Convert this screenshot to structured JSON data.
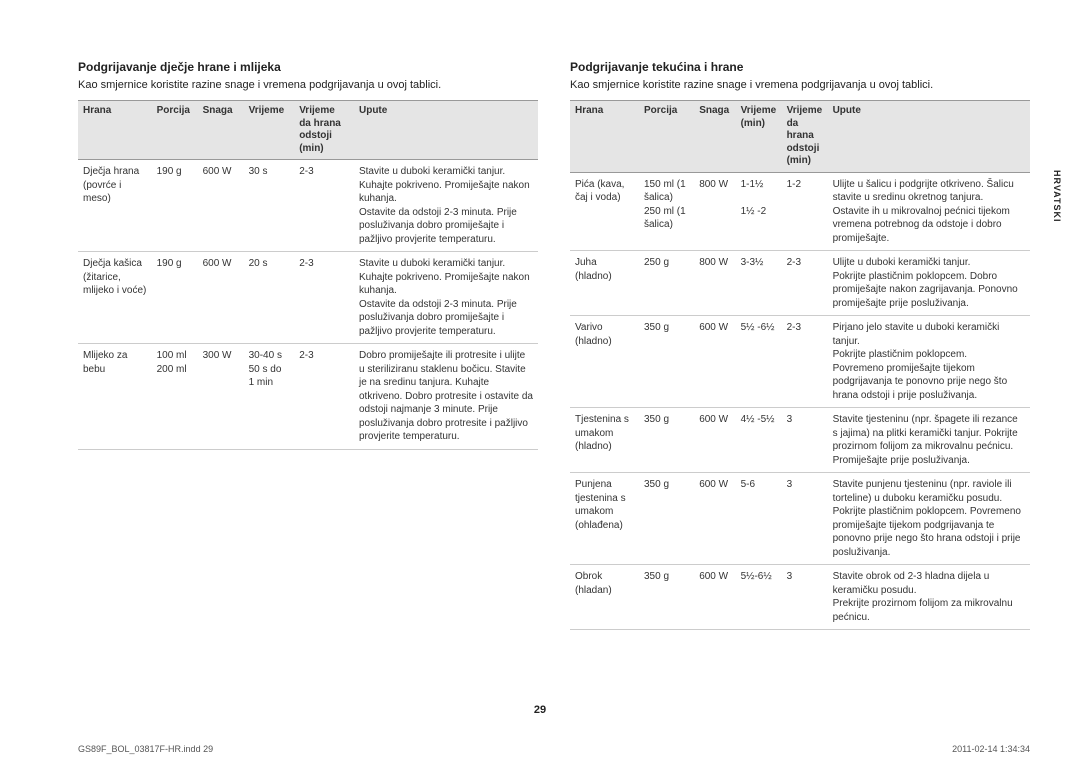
{
  "sideLabel": "HRVATSKI",
  "pageNumber": "29",
  "footerLeft": "GS89F_BOL_03817F-HR.indd   29",
  "footerRight": "2011-02-14   1:34:34",
  "left": {
    "title": "Podgrijavanje dječje hrane i mlijeka",
    "sub": "Kao smjernice koristite razine snage i vremena podgrijavanja u ovoj tablici.",
    "headers": [
      "Hrana",
      "Porcija",
      "Snaga",
      "Vrijeme",
      "Vrijeme da hrana odstoji (min)",
      "Upute"
    ],
    "colWidths": [
      "16%",
      "10%",
      "10%",
      "11%",
      "13%",
      "40%"
    ],
    "rows": [
      {
        "c": [
          "Dječja hrana (povrće i meso)",
          "190 g",
          "600 W",
          "30 s",
          "2-3",
          "Stavite u duboki keramički tanjur.\nKuhajte pokriveno. Promiješajte nakon kuhanja.\nOstavite da odstoji 2-3 minuta. Prije posluživanja dobro promiješajte i pažljivo provjerite temperaturu."
        ]
      },
      {
        "c": [
          "Dječja kašica (žitarice, mlijeko i voće)",
          "190 g",
          "600 W",
          "20 s",
          "2-3",
          "Stavite u duboki keramički tanjur.\nKuhajte pokriveno. Promiješajte nakon kuhanja.\nOstavite da odstoji 2-3 minuta. Prije posluživanja dobro promiješajte i pažljivo provjerite temperaturu."
        ]
      },
      {
        "c": [
          "Mlijeko za bebu",
          "100 ml\n200 ml",
          "300 W",
          "30-40 s\n50 s do 1 min",
          "2-3",
          "Dobro promiješajte ili protresite i ulijte u steriliziranu staklenu bočicu. Stavite je na sredinu tanjura. Kuhajte otkriveno. Dobro protresite i ostavite da odstoji najmanje 3 minute. Prije posluživanja dobro protresite i pažljivo provjerite temperaturu."
        ]
      }
    ]
  },
  "right": {
    "title": "Podgrijavanje tekućina i hrane",
    "sub": "Kao smjernice koristite razine snage i vremena podgrijavanja u ovoj tablici.",
    "headers": [
      "Hrana",
      "Porcija",
      "Snaga",
      "Vrijeme (min)",
      "Vrijeme da hrana odstoji (min)",
      "Upute"
    ],
    "colWidths": [
      "15%",
      "12%",
      "9%",
      "10%",
      "10%",
      "44%"
    ],
    "rows": [
      {
        "c": [
          "Pića (kava, čaj i voda)",
          "150 ml (1 šalica)\n250 ml (1 šalica)",
          "800 W",
          "1-1½\n\n1½ -2",
          "1-2",
          "Ulijte u šalicu i podgrijte otkriveno. Šalicu stavite u sredinu okretnog tanjura.\nOstavite ih u mikrovalnoj pećnici tijekom vremena potrebnog da odstoje i dobro promiješajte."
        ]
      },
      {
        "c": [
          "Juha (hladno)",
          "250 g",
          "800 W",
          "3-3½",
          "2-3",
          "Ulijte u duboki keramički tanjur.\nPokrijte plastičnim poklopcem. Dobro promiješajte nakon zagrijavanja. Ponovno promiješajte prije posluživanja."
        ]
      },
      {
        "c": [
          "Varivo (hladno)",
          "350 g",
          "600 W",
          "5½ -6½",
          "2-3",
          "Pirjano jelo stavite u duboki keramički tanjur.\nPokrijte plastičnim poklopcem.\nPovremeno promiješajte tijekom podgrijavanja te ponovno prije nego što hrana odstoji i prije posluživanja."
        ]
      },
      {
        "c": [
          "Tjestenina s umakom (hladno)",
          "350 g",
          "600 W",
          "4½ -5½",
          "3",
          "Stavite tjesteninu (npr. špagete ili rezance s jajima) na plitki keramički tanjur. Pokrijte prozirnom folijom za mikrovalnu pećnicu. Promiješajte prije posluživanja."
        ]
      },
      {
        "c": [
          "Punjena tjestenina s umakom (ohlađena)",
          "350 g",
          "600 W",
          "5-6",
          "3",
          "Stavite punjenu tjesteninu (npr. raviole ili torteline) u duboku keramičku posudu. Pokrijte plastičnim poklopcem. Povremeno promiješajte tijekom podgrijavanja te ponovno prije nego što hrana odstoji i prije posluživanja."
        ]
      },
      {
        "c": [
          "Obrok (hladan)",
          "350 g",
          "600 W",
          "5½-6½",
          "3",
          "Stavite obrok od 2-3 hladna dijela u keramičku posudu.\nPrekrijte prozirnom folijom za mikrovalnu pećnicu."
        ]
      }
    ]
  }
}
